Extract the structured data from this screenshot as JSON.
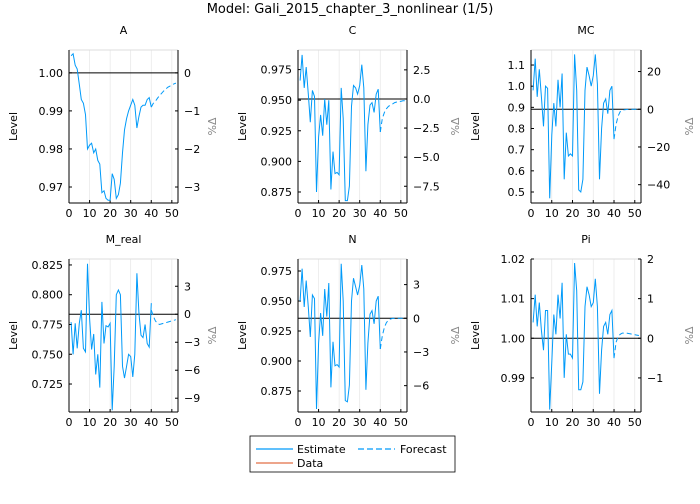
{
  "title": "Model: Gali_2015_chapter_3_nonlinear  (1/5)",
  "colors": {
    "estimate": "#009af9",
    "forecast": "#009af9",
    "data": "#e26f46",
    "steady_state": "#000000",
    "grid": "#e6e6e6",
    "right_label": "#888888"
  },
  "legend": {
    "placement": "bottom-center",
    "entries": [
      {
        "label": "Estimate",
        "style": "solid",
        "color": "#009af9"
      },
      {
        "label": "Forecast",
        "style": "dashed",
        "color": "#009af9"
      },
      {
        "label": "Data",
        "style": "solid",
        "color": "#e26f46"
      }
    ]
  },
  "chart_data": [
    {
      "type": "line",
      "title": "A",
      "ylabel": "Level",
      "y2label": "%Δ",
      "xlim": [
        0,
        53
      ],
      "ylim": [
        0.9658,
        1.006
      ],
      "steady_state": 1.0,
      "xticks": [
        0,
        10,
        20,
        30,
        40,
        50
      ],
      "yticks": [
        0.97,
        0.98,
        0.99,
        1.0
      ],
      "ytick_labels": [
        "0.97",
        "0.98",
        "0.99",
        "1.00"
      ],
      "y2ticks": [
        0,
        -1,
        -2,
        -3
      ],
      "y2tick_labels": [
        "0",
        "−1",
        "−2",
        "−3"
      ],
      "estimate": [
        1.0045,
        1.005,
        1.002,
        1.001,
        0.997,
        0.993,
        0.992,
        0.989,
        0.98,
        0.981,
        0.9815,
        0.979,
        0.98,
        0.977,
        0.976,
        0.9685,
        0.969,
        0.967,
        0.9665,
        0.9665,
        0.9735,
        0.972,
        0.967,
        0.968,
        0.971,
        0.979,
        0.985,
        0.988,
        0.99,
        0.9915,
        0.993,
        0.9915,
        0.9855,
        0.9885,
        0.991,
        0.9915,
        0.9915,
        0.993,
        0.9935,
        0.991
      ],
      "forecast": [
        0.991,
        0.992,
        0.9925,
        0.9933,
        0.994,
        0.9946,
        0.9952,
        0.9957,
        0.9962,
        0.9965,
        0.9968,
        0.9971,
        0.9973
      ]
    },
    {
      "type": "line",
      "title": "C",
      "ylabel": "Level",
      "y2label": "%Δ",
      "xlim": [
        0,
        53
      ],
      "ylim": [
        0.866,
        0.991
      ],
      "steady_state": 0.951,
      "xticks": [
        0,
        10,
        20,
        30,
        40,
        50
      ],
      "yticks": [
        0.875,
        0.9,
        0.925,
        0.95,
        0.975
      ],
      "ytick_labels": [
        "0.875",
        "0.900",
        "0.925",
        "0.950",
        "0.975"
      ],
      "y2ticks": [
        2.5,
        0,
        -2.5,
        -5,
        -7.5
      ],
      "y2tick_labels": [
        "2.5",
        "0.0",
        "−2.5",
        "−5.0",
        "−7.5"
      ],
      "estimate": [
        0.966,
        0.987,
        0.96,
        0.977,
        0.955,
        0.932,
        0.958,
        0.953,
        0.875,
        0.92,
        0.938,
        0.921,
        0.951,
        0.93,
        0.95,
        0.877,
        0.908,
        0.89,
        0.891,
        0.889,
        0.96,
        0.935,
        0.868,
        0.868,
        0.88,
        0.945,
        0.962,
        0.96,
        0.955,
        0.962,
        0.979,
        0.96,
        0.892,
        0.93,
        0.946,
        0.948,
        0.94,
        0.955,
        0.959,
        0.924
      ],
      "forecast": [
        0.924,
        0.935,
        0.94,
        0.943,
        0.945,
        0.946,
        0.947,
        0.948,
        0.9485,
        0.949,
        0.949,
        0.9495,
        0.9495
      ]
    },
    {
      "type": "line",
      "title": "MC",
      "ylabel": "Level",
      "y2label": "%Δ",
      "xlim": [
        0,
        53
      ],
      "ylim": [
        0.448,
        1.171
      ],
      "steady_state": 0.891,
      "xticks": [
        0,
        10,
        20,
        30,
        40,
        50
      ],
      "yticks": [
        0.5,
        0.6,
        0.7,
        0.8,
        0.9,
        1.0,
        1.1
      ],
      "ytick_labels": [
        "0.5",
        "0.6",
        "0.7",
        "0.8",
        "0.9",
        "1.0",
        "1.1"
      ],
      "y2ticks": [
        20,
        0,
        -20,
        -40
      ],
      "y2tick_labels": [
        "20",
        "0",
        "−20",
        "−40"
      ],
      "estimate": [
        0.98,
        1.13,
        0.95,
        1.08,
        0.95,
        0.81,
        1.0,
        0.99,
        0.47,
        0.77,
        0.92,
        0.81,
        1.03,
        0.9,
        1.06,
        0.56,
        0.78,
        0.67,
        0.68,
        0.67,
        1.15,
        0.98,
        0.51,
        0.5,
        0.56,
        0.98,
        1.09,
        1.05,
        1.0,
        1.05,
        1.15,
        1.01,
        0.56,
        0.8,
        0.92,
        0.94,
        0.87,
        0.98,
        1.0,
        0.75
      ],
      "forecast": [
        0.75,
        0.82,
        0.86,
        0.88,
        0.885,
        0.889,
        0.89,
        0.891,
        0.891,
        0.891,
        0.891,
        0.891,
        0.891
      ]
    },
    {
      "type": "line",
      "title": "M_real",
      "ylabel": "Level",
      "y2label": "%Δ",
      "xlim": [
        0,
        53
      ],
      "ylim": [
        0.7015,
        0.83
      ],
      "steady_state": 0.7836,
      "xticks": [
        0,
        10,
        20,
        30,
        40,
        50
      ],
      "yticks": [
        0.725,
        0.75,
        0.775,
        0.8,
        0.825
      ],
      "ytick_labels": [
        "0.725",
        "0.750",
        "0.775",
        "0.800",
        "0.825"
      ],
      "y2ticks": [
        3,
        0,
        -3,
        -6,
        -9
      ],
      "y2tick_labels": [
        "3",
        "0",
        "−3",
        "−6",
        "−9"
      ],
      "estimate": [
        0.777,
        0.75,
        0.776,
        0.755,
        0.776,
        0.787,
        0.755,
        0.752,
        0.826,
        0.78,
        0.754,
        0.767,
        0.733,
        0.75,
        0.722,
        0.794,
        0.759,
        0.774,
        0.773,
        0.776,
        0.703,
        0.74,
        0.8,
        0.804,
        0.8,
        0.74,
        0.73,
        0.74,
        0.75,
        0.748,
        0.731,
        0.75,
        0.818,
        0.785,
        0.766,
        0.764,
        0.775,
        0.759,
        0.756,
        0.793
      ],
      "forecast": [
        0.787,
        0.782,
        0.778,
        0.776,
        0.775,
        0.7755,
        0.776,
        0.7765,
        0.777,
        0.7775,
        0.778,
        0.7785,
        0.779
      ]
    },
    {
      "type": "line",
      "title": "N",
      "ylabel": "Level",
      "y2label": "%Δ",
      "xlim": [
        0,
        53
      ],
      "ylim": [
        0.8575,
        0.985
      ],
      "steady_state": 0.9356,
      "xticks": [
        0,
        10,
        20,
        30,
        40,
        50
      ],
      "yticks": [
        0.875,
        0.9,
        0.925,
        0.95,
        0.975
      ],
      "ytick_labels": [
        "0.875",
        "0.900",
        "0.925",
        "0.950",
        "0.975"
      ],
      "y2ticks": [
        3,
        0,
        -3,
        -6
      ],
      "y2tick_labels": [
        "3",
        "0",
        "−3",
        "−6"
      ],
      "estimate": [
        0.95,
        0.977,
        0.945,
        0.967,
        0.945,
        0.92,
        0.955,
        0.952,
        0.86,
        0.915,
        0.94,
        0.921,
        0.96,
        0.937,
        0.965,
        0.878,
        0.916,
        0.896,
        0.897,
        0.895,
        0.981,
        0.95,
        0.867,
        0.866,
        0.88,
        0.95,
        0.969,
        0.962,
        0.955,
        0.963,
        0.98,
        0.96,
        0.876,
        0.915,
        0.939,
        0.942,
        0.931,
        0.95,
        0.954,
        0.91
      ],
      "forecast": [
        0.91,
        0.921,
        0.928,
        0.932,
        0.934,
        0.935,
        0.9355,
        0.9356,
        0.9356,
        0.9356,
        0.9356,
        0.9356,
        0.9356
      ]
    },
    {
      "type": "line",
      "title": "Pi",
      "ylabel": "Level",
      "y2label": "%Δ",
      "xlim": [
        0,
        53
      ],
      "ylim": [
        0.9814,
        1.02
      ],
      "steady_state": 1.0,
      "xticks": [
        0,
        10,
        20,
        30,
        40,
        50
      ],
      "yticks": [
        0.99,
        1.0,
        1.01,
        1.02
      ],
      "ytick_labels": [
        "0.99",
        "1.00",
        "1.01",
        "1.02"
      ],
      "y2ticks": [
        2,
        1,
        0,
        -1
      ],
      "y2tick_labels": [
        "2",
        "1",
        "0",
        "−1"
      ],
      "estimate": [
        1.004,
        1.011,
        1.003,
        1.009,
        1.002,
        0.997,
        1.007,
        1.007,
        0.982,
        0.994,
        1.006,
        1.001,
        1.011,
        1.005,
        1.014,
        0.99,
        1.001,
        0.996,
        0.996,
        0.995,
        1.019,
        1.012,
        0.987,
        0.987,
        0.989,
        1.008,
        1.013,
        1.011,
        1.008,
        1.009,
        1.015,
        1.008,
        0.986,
        0.997,
        1.003,
        1.004,
        1.001,
        1.006,
        1.007,
        0.995
      ],
      "forecast": [
        0.995,
        0.999,
        1.0005,
        1.001,
        1.0013,
        1.0013,
        1.0013,
        1.0012,
        1.0011,
        1.001,
        1.0009,
        1.0008,
        1.0007
      ]
    }
  ]
}
